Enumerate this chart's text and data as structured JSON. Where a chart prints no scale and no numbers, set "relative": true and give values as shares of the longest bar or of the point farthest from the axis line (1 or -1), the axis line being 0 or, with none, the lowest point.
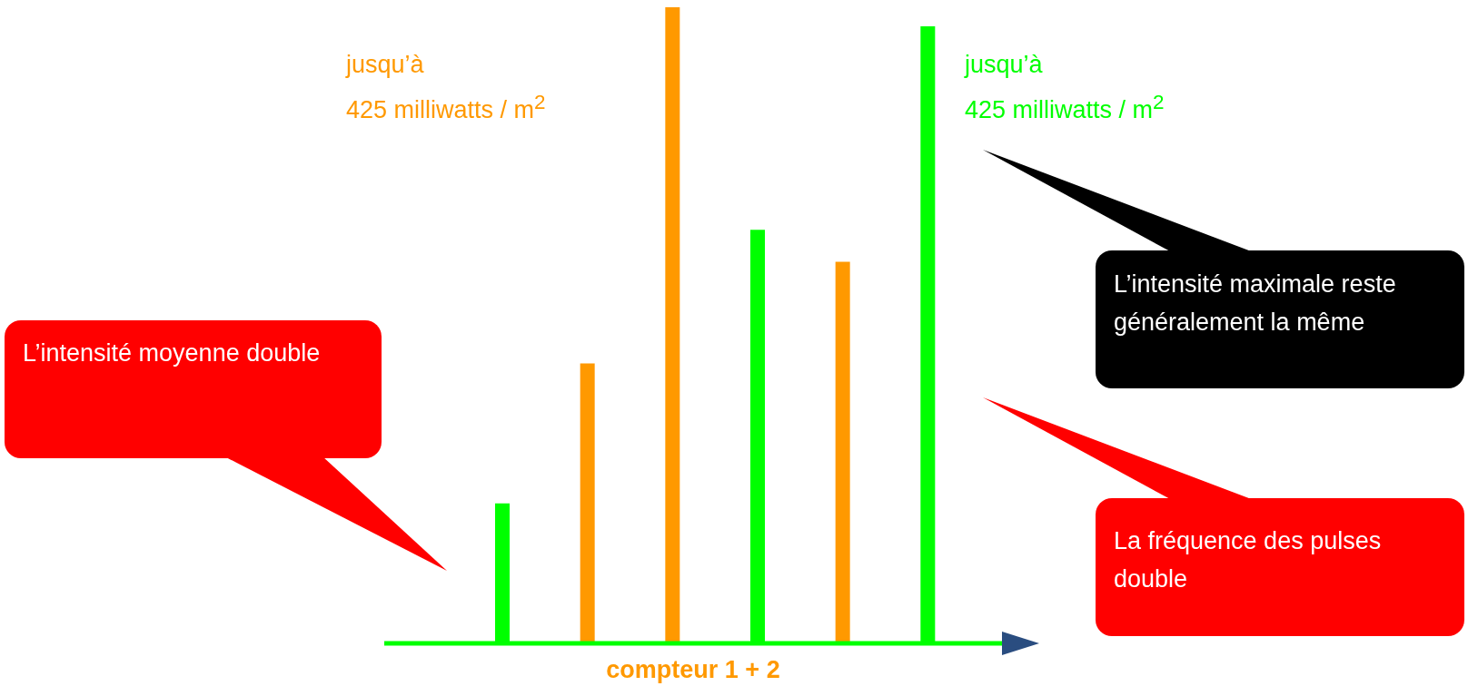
{
  "chart_data": {
    "type": "bar",
    "relative": true,
    "xlabel": "compteur 1 + 2",
    "categories": [
      null,
      null,
      null,
      null,
      null,
      null
    ],
    "values": [
      0.22,
      0.44,
      1,
      0.65,
      0.6,
      0.97
    ],
    "colors": [
      "#00ff00",
      "#ff9900",
      "#ff9900",
      "#00ff00",
      "#ff9900",
      "#00ff00"
    ],
    "annotations": [
      "jusqu’à\n425 milliwatts / m$^{2}$",
      "jusqu’à\n425 milliwatts / m$^{2}$",
      "L’intensité moyenne double",
      "L’intensité maximale reste généralement la même",
      "La fréquence des pulses double"
    ],
    "legend": false,
    "grid": false
  }
}
